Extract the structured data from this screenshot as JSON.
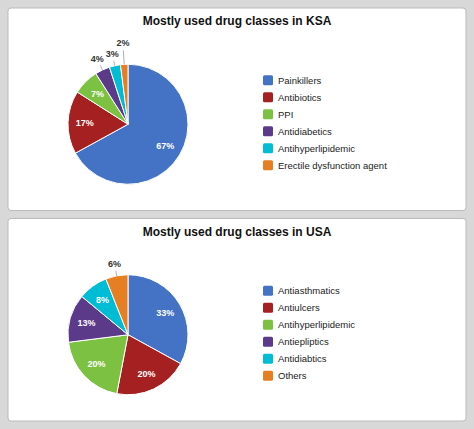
{
  "chart_data": [
    {
      "type": "pie",
      "title": "Mostly used drug classes in KSA",
      "categories": [
        "Painkillers",
        "Antibiotics",
        "PPI",
        "Antidiabetics",
        "Antihyperlipidemic",
        "Erectile dysfunction agent"
      ],
      "values": [
        67,
        17,
        7,
        4,
        3,
        2
      ],
      "value_labels": [
        "67%",
        "17%",
        "7%",
        "4%",
        "3%",
        "2%"
      ],
      "colors": [
        "#4472C4",
        "#A52020",
        "#7DC143",
        "#5B3A8A",
        "#00BCD4",
        "#E67E22"
      ],
      "data_labels": true,
      "legend": "right"
    },
    {
      "type": "pie",
      "title": "Mostly used drug classes in USA",
      "categories": [
        "Antiasthmatics",
        "Antiulcers",
        "Antihyperlipidemic",
        "Antiepliptics",
        "Antidiabtics",
        "Others"
      ],
      "values": [
        33,
        20,
        20,
        13,
        8,
        6
      ],
      "value_labels": [
        "33%",
        "20%",
        "20%",
        "13%",
        "8%",
        "6%"
      ],
      "colors": [
        "#4472C4",
        "#A52020",
        "#7DC143",
        "#5B3A8A",
        "#00BCD4",
        "#E67E22"
      ],
      "data_labels": true,
      "legend": "right"
    }
  ]
}
